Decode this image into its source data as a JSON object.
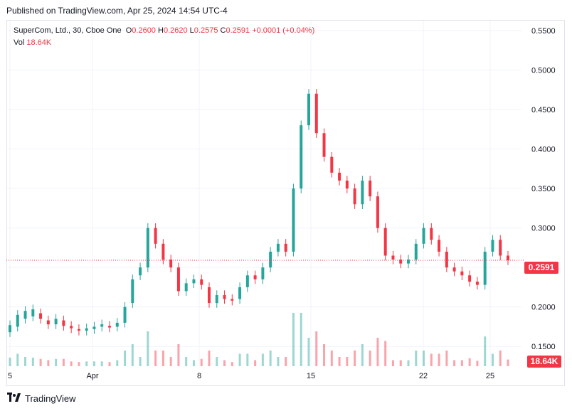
{
  "published": "Published on TradingView.com, Apr 25, 2024 14:54 UTC-4",
  "legend": {
    "symbol": "SuperCom, Ltd., 30, Cboe One",
    "open_label": "O",
    "open": "0.2600",
    "high_label": "H",
    "high": "0.2620",
    "low_label": "L",
    "low": "0.2575",
    "close_label": "C",
    "close": "0.2591",
    "change": "+0.0001 (+0.04%)",
    "vol_label": "Vol",
    "vol": "18.64K"
  },
  "price_tag": "0.2591",
  "vol_tag": "18.64K",
  "footer": {
    "brand": "TradingView"
  },
  "colors": {
    "up": "#26a69a",
    "down": "#f23645",
    "grid": "#f0f3fa",
    "text": "#131722"
  },
  "chart_data": {
    "type": "candlestick",
    "title": "SuperCom, Ltd., 30, Cboe One",
    "ylim": [
      0.125,
      0.5625
    ],
    "yticks": [
      "0.1500",
      "0.2000",
      "0.2500",
      "0.3000",
      "0.3500",
      "0.4000",
      "0.4500",
      "0.5000",
      "0.5500"
    ],
    "ytick_values": [
      0.15,
      0.2,
      0.25,
      0.3,
      0.35,
      0.4,
      0.45,
      0.5,
      0.55
    ],
    "xticks": [
      "5",
      "Apr",
      "8",
      "15",
      "22",
      "25"
    ],
    "last_price": 0.2591,
    "grid": true,
    "series_points": [
      [
        0.168,
        0.177
      ],
      [
        0.175,
        0.19
      ],
      [
        0.185,
        0.195
      ],
      [
        0.188,
        0.197
      ],
      [
        0.192,
        0.185
      ],
      [
        0.183,
        0.178
      ],
      [
        0.178,
        0.185
      ],
      [
        0.183,
        0.176
      ],
      [
        0.176,
        0.173
      ],
      [
        0.172,
        0.17
      ],
      [
        0.17,
        0.173
      ],
      [
        0.172,
        0.175
      ],
      [
        0.175,
        0.178
      ],
      [
        0.176,
        0.174
      ],
      [
        0.175,
        0.18
      ],
      [
        0.18,
        0.2
      ],
      [
        0.205,
        0.235
      ],
      [
        0.24,
        0.25
      ],
      [
        0.25,
        0.3
      ],
      [
        0.3,
        0.28
      ],
      [
        0.28,
        0.26
      ],
      [
        0.26,
        0.25
      ],
      [
        0.25,
        0.22
      ],
      [
        0.22,
        0.23
      ],
      [
        0.23,
        0.235
      ],
      [
        0.235,
        0.228
      ],
      [
        0.225,
        0.205
      ],
      [
        0.205,
        0.215
      ],
      [
        0.215,
        0.21
      ],
      [
        0.21,
        0.208
      ],
      [
        0.21,
        0.225
      ],
      [
        0.225,
        0.24
      ],
      [
        0.24,
        0.235
      ],
      [
        0.235,
        0.25
      ],
      [
        0.25,
        0.27
      ],
      [
        0.27,
        0.28
      ],
      [
        0.28,
        0.27
      ],
      [
        0.27,
        0.35
      ],
      [
        0.35,
        0.43
      ],
      [
        0.43,
        0.47
      ],
      [
        0.47,
        0.42
      ],
      [
        0.42,
        0.39
      ],
      [
        0.39,
        0.37
      ],
      [
        0.37,
        0.36
      ],
      [
        0.36,
        0.35
      ],
      [
        0.35,
        0.33
      ],
      [
        0.33,
        0.36
      ],
      [
        0.36,
        0.34
      ],
      [
        0.34,
        0.3
      ],
      [
        0.3,
        0.265
      ],
      [
        0.265,
        0.26
      ],
      [
        0.26,
        0.255
      ],
      [
        0.255,
        0.26
      ],
      [
        0.26,
        0.28
      ],
      [
        0.28,
        0.3
      ],
      [
        0.3,
        0.285
      ],
      [
        0.285,
        0.27
      ],
      [
        0.27,
        0.25
      ],
      [
        0.25,
        0.245
      ],
      [
        0.245,
        0.24
      ],
      [
        0.24,
        0.232
      ],
      [
        0.232,
        0.228
      ],
      [
        0.228,
        0.27
      ],
      [
        0.27,
        0.285
      ],
      [
        0.285,
        0.265
      ],
      [
        0.265,
        0.259
      ]
    ],
    "volume": {
      "label": "Vol",
      "last": "18.64K"
    }
  }
}
